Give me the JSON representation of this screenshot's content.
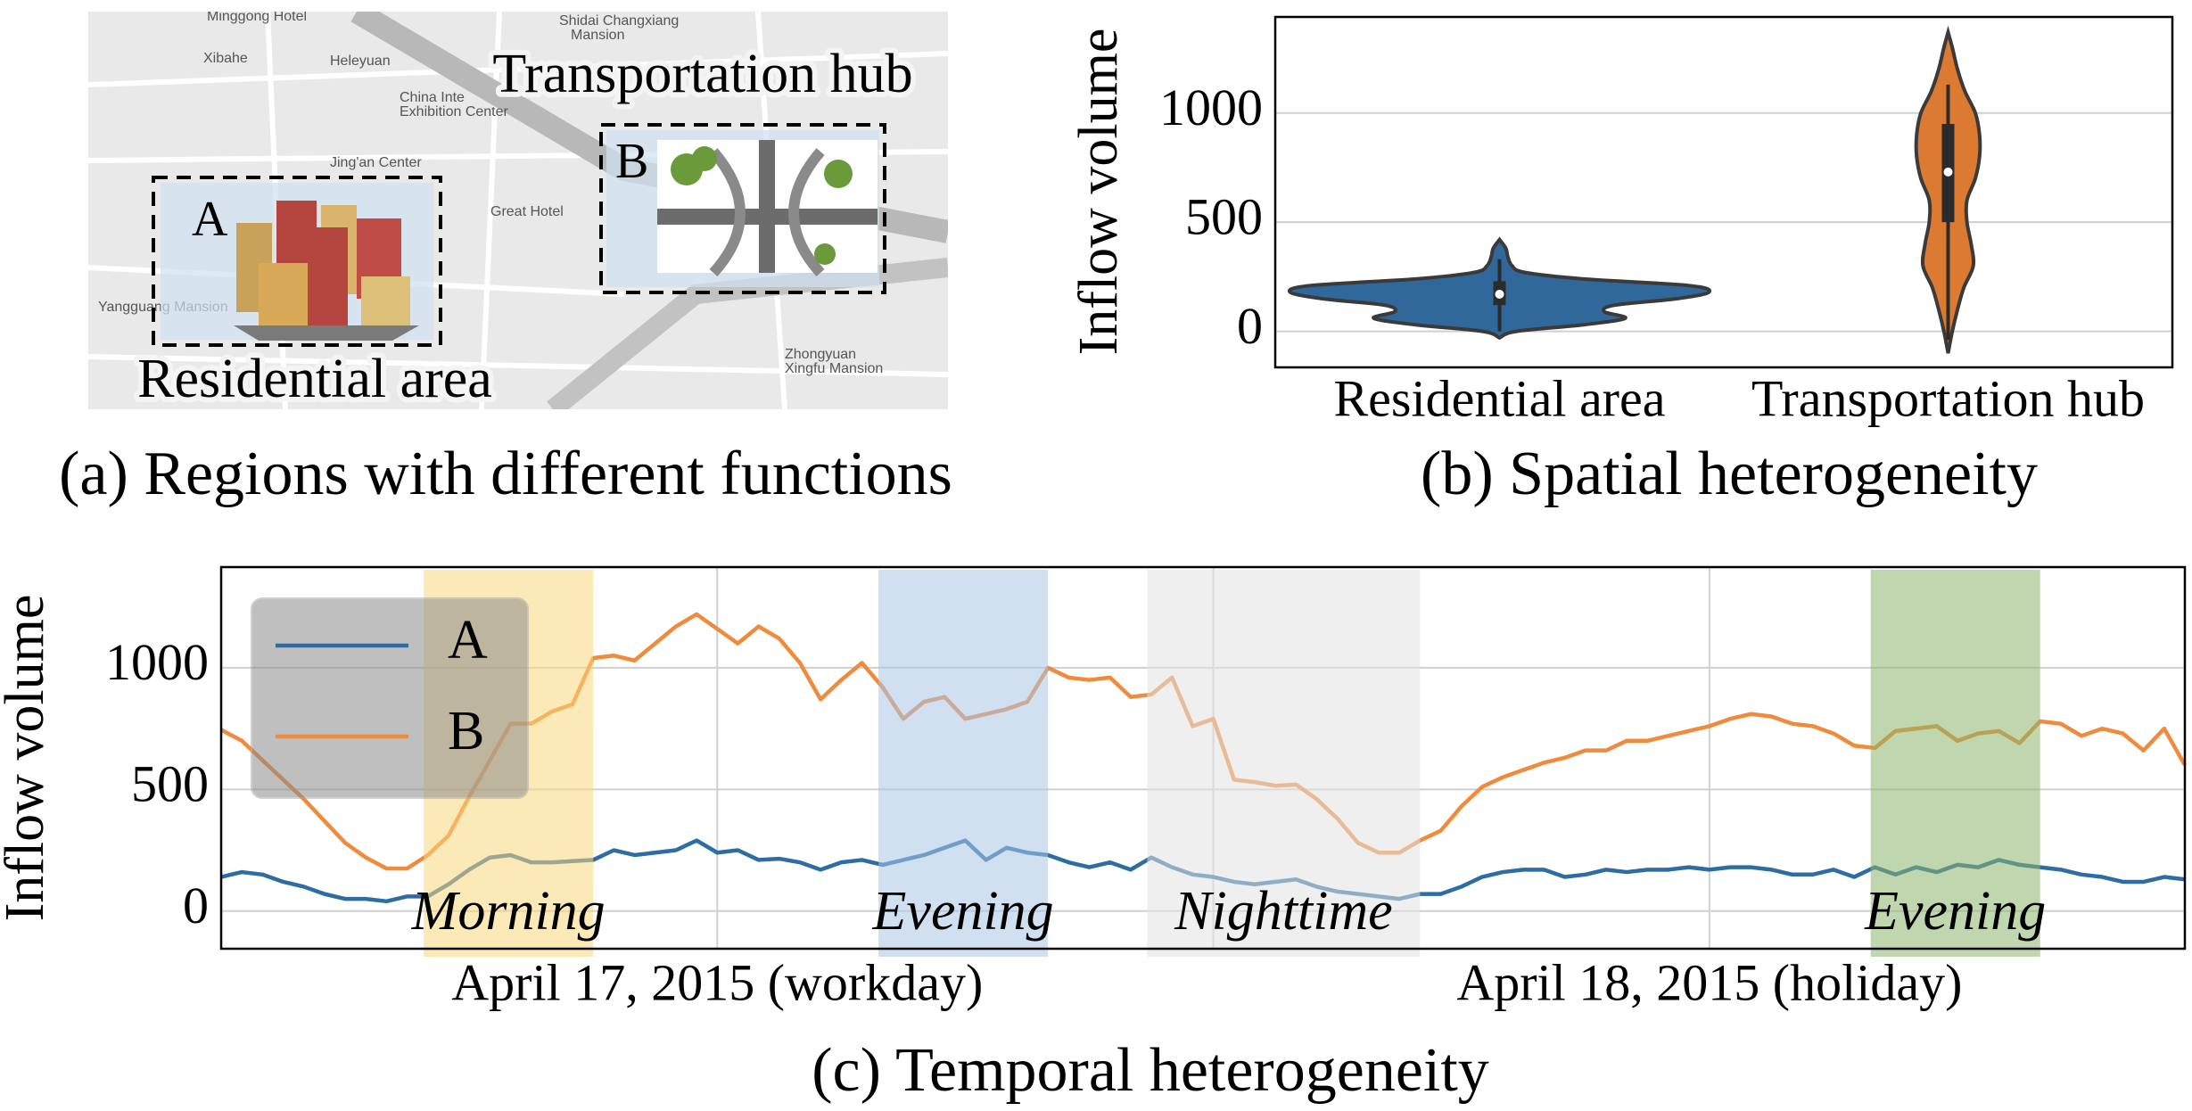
{
  "map_panel": {
    "caption": "(a) Regions with different functions",
    "region_a": {
      "letter": "A",
      "label": "Residential area"
    },
    "region_b": {
      "letter": "B",
      "label": "Transportation hub"
    },
    "places": [
      "Minggong Hotel",
      "Shidai Changxiang",
      "Mansion",
      "Xibahe",
      "Heleyuan",
      "China Inte",
      "Exhibition Center",
      "Jing'an Center",
      "Great Hotel",
      "Yangguang Mansion",
      "Zhongyuan",
      "Xingfu Mansion"
    ]
  },
  "chart_data": [
    {
      "type": "violin",
      "caption": "(b) Spatial heterogeneity",
      "ylabel": "Inflow volume",
      "categories": [
        "Residential area",
        "Transportation hub"
      ],
      "ylim": [
        -165,
        1440
      ],
      "yticks": [
        0,
        500,
        1000
      ],
      "grid": true,
      "violins": [
        {
          "color": "#31689b",
          "q1": 120,
          "median": 170,
          "q3": 230,
          "whisker": [
            0,
            330
          ],
          "y": [
            -30,
            0,
            30,
            60,
            90,
            120,
            150,
            180,
            210,
            240,
            270,
            300,
            340,
            380,
            420
          ],
          "density": [
            0,
            0.08,
            0.4,
            0.6,
            0.5,
            0.55,
            0.85,
            1.0,
            0.9,
            0.4,
            0.12,
            0.06,
            0.04,
            0.03,
            0
          ]
        },
        {
          "color": "#dd7a32",
          "q1": 500,
          "median": 730,
          "q3": 950,
          "whisker": [
            -40,
            1130
          ],
          "y": [
            -100,
            0,
            100,
            200,
            300,
            400,
            500,
            600,
            700,
            800,
            900,
            1000,
            1100,
            1200,
            1300,
            1370
          ],
          "density": [
            0,
            0.02,
            0.045,
            0.075,
            0.12,
            0.11,
            0.09,
            0.09,
            0.13,
            0.15,
            0.15,
            0.13,
            0.08,
            0.045,
            0.02,
            0
          ]
        }
      ]
    },
    {
      "type": "line",
      "caption": "(c) Temporal heterogeneity",
      "ylabel": "Inflow volume",
      "x": [
        0,
        0.5,
        1,
        1.5,
        2,
        2.5,
        3,
        3.5,
        4,
        4.5,
        5,
        5.5,
        6,
        6.5,
        7,
        7.5,
        8,
        8.5,
        9,
        9.5,
        10,
        10.5,
        11,
        11.5,
        12,
        12.5,
        13,
        13.5,
        14,
        14.5,
        15,
        15.5,
        16,
        16.5,
        17,
        17.5,
        18,
        18.5,
        19,
        19.5,
        20,
        20.5,
        21,
        21.5,
        22,
        22.5,
        23,
        23.5,
        24,
        24.5,
        25,
        25.5,
        26,
        26.5,
        27,
        27.5,
        28,
        28.5,
        29,
        29.5,
        30,
        30.5,
        31,
        31.5,
        32,
        32.5,
        33,
        33.5,
        34,
        34.5,
        35,
        35.5,
        36,
        36.5,
        37,
        37.5,
        38,
        38.5,
        39,
        39.5,
        40,
        40.5,
        41,
        41.5,
        42,
        42.5,
        43,
        43.5,
        44,
        44.5,
        45,
        45.5,
        46,
        46.5,
        47,
        47.5
      ],
      "xlim": [
        0,
        47.5
      ],
      "xticks": [
        {
          "value": 12,
          "label": "April 17, 2015 (workday)"
        },
        {
          "value": 24,
          "label": null
        },
        {
          "value": 36,
          "label": "April 18, 2015 (holiday)"
        }
      ],
      "ylim": [
        -155,
        1414
      ],
      "yticks": [
        0,
        500,
        1000
      ],
      "grid": true,
      "legend": "upper left",
      "series": [
        {
          "name": "A",
          "color": "#2e6da4",
          "values": [
            140,
            160,
            150,
            120,
            100,
            70,
            50,
            50,
            40,
            60,
            60,
            110,
            170,
            220,
            230,
            200,
            200,
            205,
            210,
            250,
            230,
            240,
            250,
            290,
            240,
            250,
            210,
            215,
            200,
            170,
            200,
            210,
            190,
            210,
            230,
            260,
            290,
            210,
            260,
            240,
            230,
            200,
            180,
            200,
            170,
            220,
            180,
            150,
            140,
            120,
            110,
            120,
            130,
            100,
            80,
            70,
            60,
            50,
            70,
            70,
            100,
            140,
            160,
            170,
            170,
            140,
            150,
            170,
            160,
            170,
            170,
            180,
            170,
            180,
            180,
            170,
            150,
            150,
            170,
            140,
            180,
            150,
            180,
            160,
            190,
            180,
            210,
            190,
            180,
            170,
            150,
            140,
            120,
            120,
            140,
            130
          ]
        },
        {
          "name": "B",
          "color": "#f08a3c",
          "values": [
            745,
            700,
            620,
            540,
            460,
            370,
            280,
            220,
            175,
            175,
            230,
            310,
            470,
            620,
            770,
            770,
            820,
            850,
            1040,
            1050,
            1030,
            1100,
            1170,
            1220,
            1160,
            1100,
            1170,
            1120,
            1020,
            870,
            950,
            1020,
            920,
            790,
            860,
            880,
            790,
            810,
            830,
            860,
            1000,
            960,
            950,
            960,
            880,
            890,
            960,
            760,
            790,
            540,
            530,
            515,
            520,
            460,
            380,
            280,
            240,
            240,
            290,
            330,
            430,
            510,
            550,
            580,
            610,
            630,
            660,
            660,
            700,
            700,
            720,
            740,
            760,
            790,
            810,
            800,
            770,
            760,
            730,
            680,
            670,
            740,
            750,
            760,
            700,
            730,
            740,
            690,
            780,
            770,
            720,
            750,
            730,
            660,
            750,
            600
          ]
        }
      ],
      "bands": [
        {
          "label": "Morning",
          "start": 4.9,
          "end": 9.0,
          "color": "#f9d77e"
        },
        {
          "label": "Evening",
          "start": 15.9,
          "end": 20.0,
          "color": "#a9c6e6"
        },
        {
          "label": "Nighttime",
          "start": 22.4,
          "end": 29.0,
          "color": "#e2e2e2"
        },
        {
          "label": "Evening",
          "start": 39.9,
          "end": 44.0,
          "color": "#8db56b"
        }
      ]
    }
  ]
}
